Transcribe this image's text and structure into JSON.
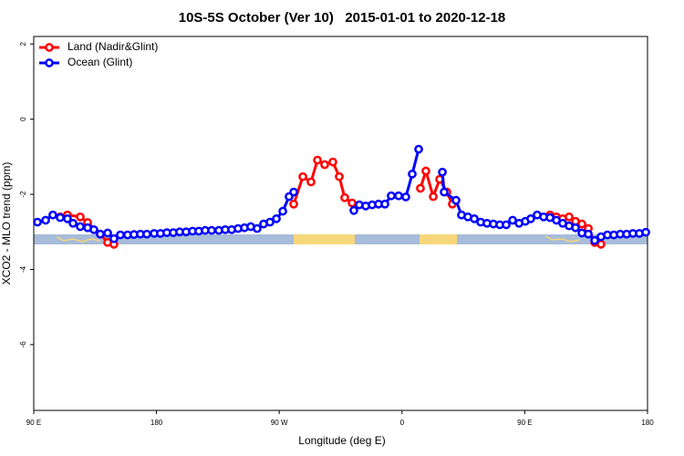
{
  "chart_data": {
    "type": "line",
    "title": "10S-5S October (Ver 10)   2015-01-01 to 2020-12-18",
    "x_label": "Longitude (deg E)",
    "y_label": "XCO2 - MLO trend (ppm)",
    "xlim": [
      90,
      540
    ],
    "ylim": [
      -7.75,
      2.2
    ],
    "xticks": [
      {
        "value": 90,
        "label": "90 E"
      },
      {
        "value": 180,
        "label": "180"
      },
      {
        "value": 270,
        "label": "90 W"
      },
      {
        "value": 360,
        "label": "0"
      },
      {
        "value": 450,
        "label": "90 E"
      },
      {
        "value": 540,
        "label": "180"
      }
    ],
    "yticks": [
      2,
      0,
      -2,
      -4,
      -6
    ],
    "legend": "top-left",
    "series": [
      {
        "name": "Land (Nadir&Glint)",
        "color": "#ff0000",
        "x": [
          109.4,
          114.7,
          124.1,
          129.5,
          138.8,
          144.2,
          148.8,
          null,
          280.6,
          287.3,
          293.3,
          298.0,
          303.3,
          309.3,
          314.0,
          318.0,
          323.4,
          null,
          373.5,
          377.5,
          382.9,
          387.6,
          392.9,
          396.9,
          null,
          468.5,
          473.2,
          477.8,
          482.5,
          487.2,
          491.9,
          496.6,
          501.3,
          505.9
        ],
        "values": [
          -2.6,
          -2.55,
          -2.6,
          -2.75,
          -3.06,
          -3.28,
          -3.33,
          null,
          -2.26,
          -1.53,
          -1.67,
          -1.09,
          -1.21,
          -1.14,
          -1.53,
          -2.09,
          -2.23,
          null,
          -1.84,
          -1.38,
          -2.06,
          -1.6,
          -1.94,
          -2.26,
          null,
          -2.55,
          -2.6,
          -2.65,
          -2.6,
          -2.72,
          -2.79,
          -2.91,
          -3.28,
          -3.33
        ]
      },
      {
        "name": "Ocean (Glint)",
        "color": "#0000ff",
        "x": [
          92.7,
          98.7,
          104.0,
          109.4,
          114.7,
          118.8,
          124.1,
          129.5,
          134.1,
          138.8,
          144.2,
          148.8,
          153.5,
          158.8,
          163.5,
          168.2,
          172.9,
          178.3,
          182.9,
          187.6,
          192.3,
          197.0,
          201.7,
          206.4,
          211.0,
          215.7,
          220.4,
          225.7,
          230.4,
          235.1,
          239.8,
          244.5,
          249.1,
          253.8,
          258.5,
          263.2,
          267.9,
          272.6,
          277.2,
          280.6,
          null,
          324.7,
          328.7,
          333.4,
          338.1,
          342.8,
          347.5,
          352.1,
          357.5,
          362.8,
          367.5,
          372.2,
          null,
          389.6,
          390.9,
          399.6,
          403.6,
          408.3,
          413.0,
          417.7,
          422.3,
          427.0,
          431.7,
          436.4,
          441.1,
          445.8,
          450.4,
          454.4,
          459.1,
          463.8,
          468.5,
          473.2,
          477.8,
          482.5,
          487.2,
          491.9,
          496.6,
          501.3,
          505.9,
          510.6,
          515.3,
          520.0,
          524.7,
          529.3,
          534.0,
          538.7
        ],
        "values": [
          -2.74,
          -2.69,
          -2.55,
          -2.62,
          -2.65,
          -2.77,
          -2.86,
          -2.89,
          -2.94,
          -3.06,
          -3.03,
          -3.18,
          -3.08,
          -3.08,
          -3.07,
          -3.06,
          -3.06,
          -3.04,
          -3.04,
          -3.02,
          -3.02,
          -3.0,
          -3.0,
          -2.98,
          -2.98,
          -2.96,
          -2.96,
          -2.96,
          -2.94,
          -2.94,
          -2.91,
          -2.89,
          -2.86,
          -2.91,
          -2.79,
          -2.74,
          -2.65,
          -2.45,
          -2.06,
          -1.94,
          null,
          -2.43,
          -2.28,
          -2.31,
          -2.28,
          -2.26,
          -2.26,
          -2.04,
          -2.04,
          -2.07,
          -1.46,
          -0.8,
          null,
          -1.41,
          -1.94,
          -2.16,
          -2.55,
          -2.6,
          -2.65,
          -2.74,
          -2.77,
          -2.79,
          -2.81,
          -2.81,
          -2.69,
          -2.77,
          -2.72,
          -2.65,
          -2.55,
          -2.6,
          -2.62,
          -2.69,
          -2.77,
          -2.84,
          -2.89,
          -3.03,
          -3.06,
          -3.23,
          -3.13,
          -3.08,
          -3.08,
          -3.06,
          -3.06,
          -3.04,
          -3.04,
          -3.01
        ]
      }
    ]
  }
}
